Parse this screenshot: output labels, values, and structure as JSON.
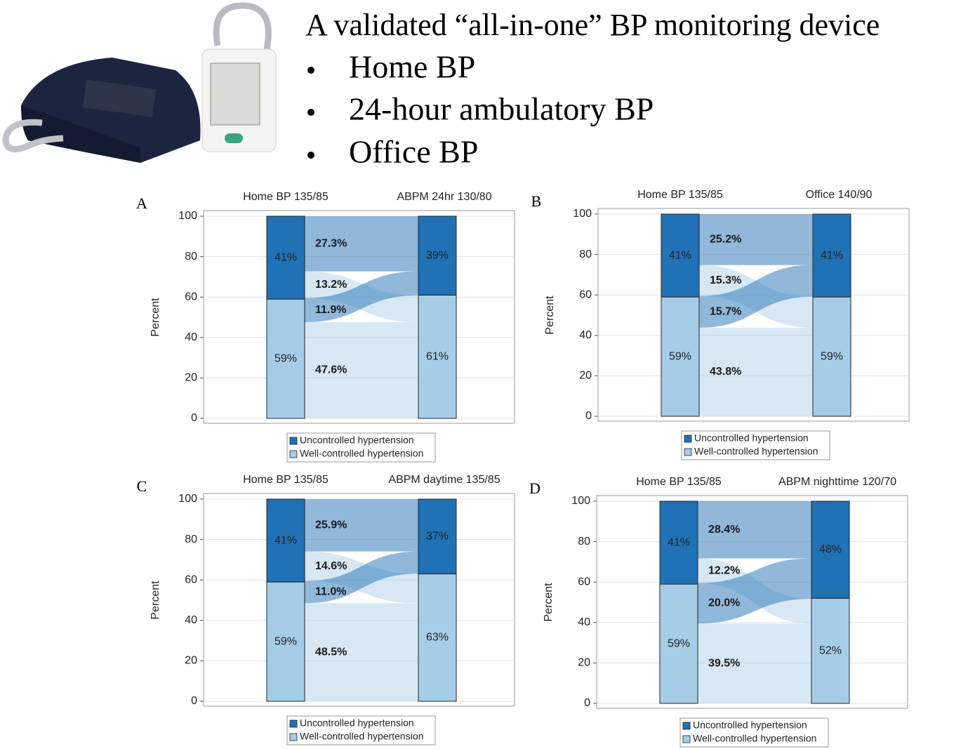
{
  "slide": {
    "title": "A validated “all-in-one” BP monitoring device",
    "bullets": [
      "Home BP",
      "24-hour ambulatory BP",
      "Office BP"
    ]
  },
  "chart_data": [
    {
      "type": "alluvial",
      "panel": "A",
      "ylabel": "Percent",
      "categories": [
        "Home BP 135/85",
        "ABPM 24hr 130/80"
      ],
      "series": [
        {
          "name": "Uncontrolled hypertension",
          "color": "#2171b5",
          "values": [
            41,
            39
          ],
          "value_labels": [
            "41%",
            "39%"
          ]
        },
        {
          "name": "Well-controlled hypertension",
          "color": "#a6cde7",
          "values": [
            59,
            61
          ],
          "value_labels": [
            "59%",
            "61%"
          ]
        }
      ],
      "flows": {
        "values": [
          27.3,
          13.2,
          11.9,
          47.6
        ],
        "value_labels": [
          "27.3%",
          "13.2%",
          "11.9%",
          "47.6%"
        ]
      },
      "ylim": [
        0,
        100
      ],
      "yticks": [
        0,
        20,
        40,
        60,
        80,
        100
      ],
      "grid": true,
      "legend": "bottom"
    },
    {
      "type": "alluvial",
      "panel": "B",
      "ylabel": "Percent",
      "categories": [
        "Home BP 135/85",
        "Office 140/90"
      ],
      "series": [
        {
          "name": "Uncontrolled hypertension",
          "color": "#2171b5",
          "values": [
            41,
            41
          ],
          "value_labels": [
            "41%",
            "41%"
          ]
        },
        {
          "name": "Well-controlled hypertension",
          "color": "#a6cde7",
          "values": [
            59,
            59
          ],
          "value_labels": [
            "59%",
            "59%"
          ]
        }
      ],
      "flows": {
        "values": [
          25.2,
          15.3,
          15.7,
          43.8
        ],
        "value_labels": [
          "25.2%",
          "15.3%",
          "15.7%",
          "43.8%"
        ]
      },
      "ylim": [
        0,
        100
      ],
      "yticks": [
        0,
        20,
        40,
        60,
        80,
        100
      ],
      "grid": true,
      "legend": "bottom"
    },
    {
      "type": "alluvial",
      "panel": "C",
      "ylabel": "Percent",
      "categories": [
        "Home BP 135/85",
        "ABPM daytime 135/85"
      ],
      "series": [
        {
          "name": "Uncontrolled hypertension",
          "color": "#2171b5",
          "values": [
            41,
            37
          ],
          "value_labels": [
            "41%",
            "37%"
          ]
        },
        {
          "name": "Well-controlled hypertension",
          "color": "#a6cde7",
          "values": [
            59,
            63
          ],
          "value_labels": [
            "59%",
            "63%"
          ]
        }
      ],
      "flows": {
        "values": [
          25.9,
          14.6,
          11.0,
          48.5
        ],
        "value_labels": [
          "25.9%",
          "14.6%",
          "11.0%",
          "48.5%"
        ]
      },
      "ylim": [
        0,
        100
      ],
      "yticks": [
        0,
        20,
        40,
        60,
        80,
        100
      ],
      "grid": true,
      "legend": "bottom"
    },
    {
      "type": "alluvial",
      "panel": "D",
      "ylabel": "Percent",
      "categories": [
        "Home BP 135/85",
        "ABPM nighttime 120/70"
      ],
      "series": [
        {
          "name": "Uncontrolled hypertension",
          "color": "#2171b5",
          "values": [
            41,
            48
          ],
          "value_labels": [
            "41%",
            "48%"
          ]
        },
        {
          "name": "Well-controlled hypertension",
          "color": "#a6cde7",
          "values": [
            59,
            52
          ],
          "value_labels": [
            "59%",
            "52%"
          ]
        }
      ],
      "flows": {
        "values": [
          28.4,
          12.2,
          20.0,
          39.5
        ],
        "value_labels": [
          "28.4%",
          "12.2%",
          "20.0%",
          "39.5%"
        ]
      },
      "ylim": [
        0,
        100
      ],
      "yticks": [
        0,
        20,
        40,
        60,
        80,
        100
      ],
      "grid": true,
      "legend": "bottom"
    }
  ]
}
